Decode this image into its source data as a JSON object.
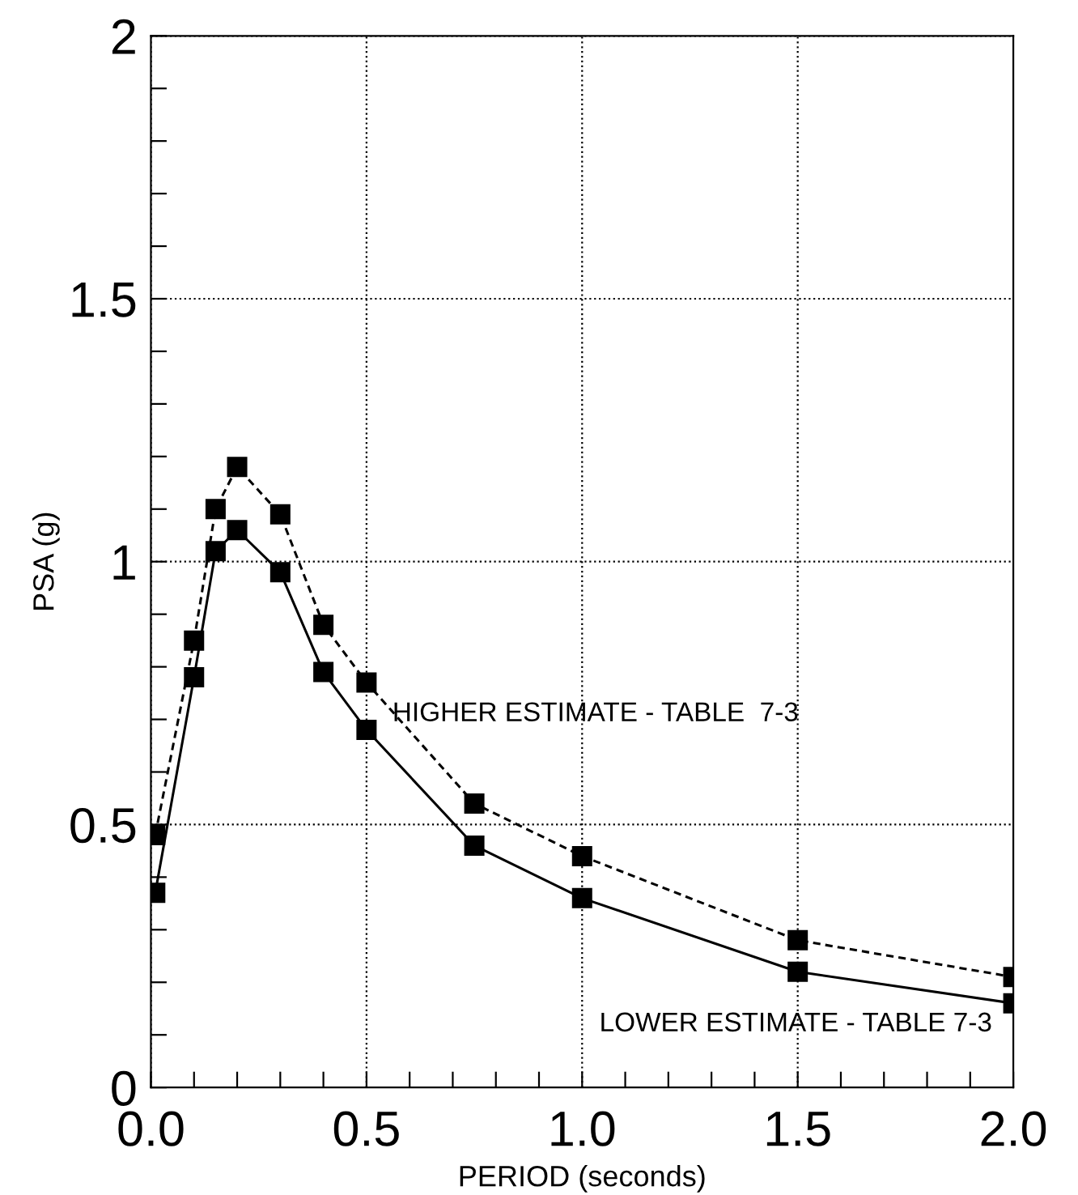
{
  "chart_data": {
    "type": "line",
    "xlabel": "PERIOD (seconds)",
    "ylabel": "PSA (g)",
    "x": [
      0.01,
      0.1,
      0.15,
      0.2,
      0.3,
      0.4,
      0.5,
      0.75,
      1.0,
      1.5,
      2.0
    ],
    "series": [
      {
        "color": "#000000",
        "line_style": "solid",
        "values": [
          0.37,
          0.78,
          1.02,
          1.06,
          0.98,
          0.79,
          0.68,
          0.46,
          0.36,
          0.22,
          0.16
        ]
      },
      {
        "color": "#000000",
        "line_style": "dashed",
        "values": [
          0.48,
          0.85,
          1.1,
          1.18,
          1.09,
          0.88,
          0.77,
          0.54,
          0.44,
          0.28,
          0.21
        ]
      }
    ],
    "xlim": [
      0,
      2
    ],
    "ylim": [
      0,
      2
    ],
    "xticks": [
      {
        "value": 0,
        "label": "0.0"
      },
      {
        "value": 0.1,
        "label": null
      },
      {
        "value": 0.2,
        "label": null
      },
      {
        "value": 0.3,
        "label": null
      },
      {
        "value": 0.4,
        "label": null
      },
      {
        "value": 0.5,
        "label": "0.5"
      },
      {
        "value": 0.6,
        "label": null
      },
      {
        "value": 0.7,
        "label": null
      },
      {
        "value": 0.8,
        "label": null
      },
      {
        "value": 0.9,
        "label": null
      },
      {
        "value": 1.0,
        "label": "1.0"
      },
      {
        "value": 1.1,
        "label": null
      },
      {
        "value": 1.2,
        "label": null
      },
      {
        "value": 1.3,
        "label": null
      },
      {
        "value": 1.4,
        "label": null
      },
      {
        "value": 1.5,
        "label": "1.5"
      },
      {
        "value": 1.6,
        "label": null
      },
      {
        "value": 1.7,
        "label": null
      },
      {
        "value": 1.8,
        "label": null
      },
      {
        "value": 1.9,
        "label": null
      },
      {
        "value": 2.0,
        "label": "2.0"
      }
    ],
    "yticks": [
      0,
      {
        "value": 0.1,
        "label": null
      },
      {
        "value": 0.2,
        "label": null
      },
      {
        "value": 0.3,
        "label": null
      },
      {
        "value": 0.4,
        "label": null
      },
      0.5,
      {
        "value": 0.6,
        "label": null
      },
      {
        "value": 0.7,
        "label": null
      },
      {
        "value": 0.8,
        "label": null
      },
      {
        "value": 0.9,
        "label": null
      },
      1,
      {
        "value": 1.1,
        "label": null
      },
      {
        "value": 1.2,
        "label": null
      },
      {
        "value": 1.3,
        "label": null
      },
      {
        "value": 1.4,
        "label": null
      },
      1.5,
      {
        "value": 1.6,
        "label": null
      },
      {
        "value": 1.7,
        "label": null
      },
      {
        "value": 1.8,
        "label": null
      },
      {
        "value": 1.9,
        "label": null
      },
      2
    ],
    "grid": true,
    "marker": "square",
    "legend": false,
    "annotations": [
      "HIGHER ESTIMATE - TABLE  7-3",
      "LOWER ESTIMATE - TABLE 7-3"
    ]
  }
}
